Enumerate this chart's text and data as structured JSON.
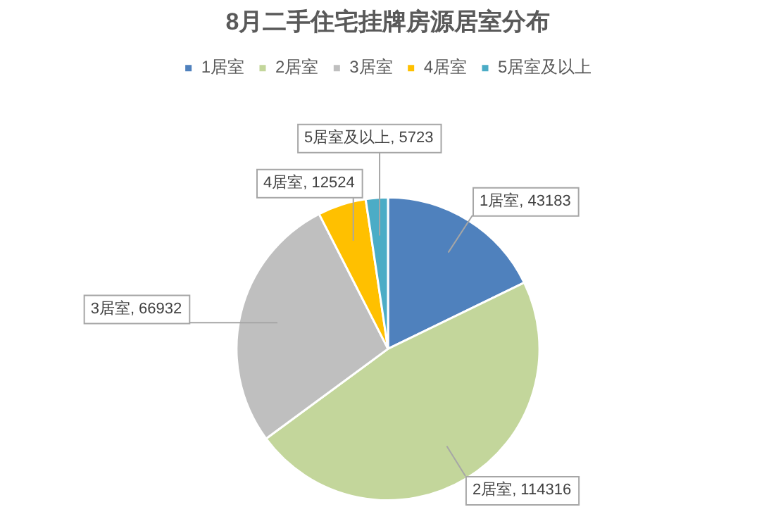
{
  "chart_data": {
    "type": "pie",
    "title": "8月二手住宅挂牌房源居室分布",
    "categories": [
      "1居室",
      "2居室",
      "3居室",
      "4居室",
      "5居室及以上"
    ],
    "values": [
      43183,
      114316,
      66932,
      12524,
      5723
    ],
    "colors": [
      "#4f81bd",
      "#c3d69b",
      "#bfbfbf",
      "#ffc000",
      "#4bacc6"
    ],
    "value_labels": [
      "1居室, 43183",
      "2居室, 114316",
      "3居室, 66932",
      "4居室, 12524",
      "5居室及以上, 5723"
    ],
    "legend": "top"
  }
}
